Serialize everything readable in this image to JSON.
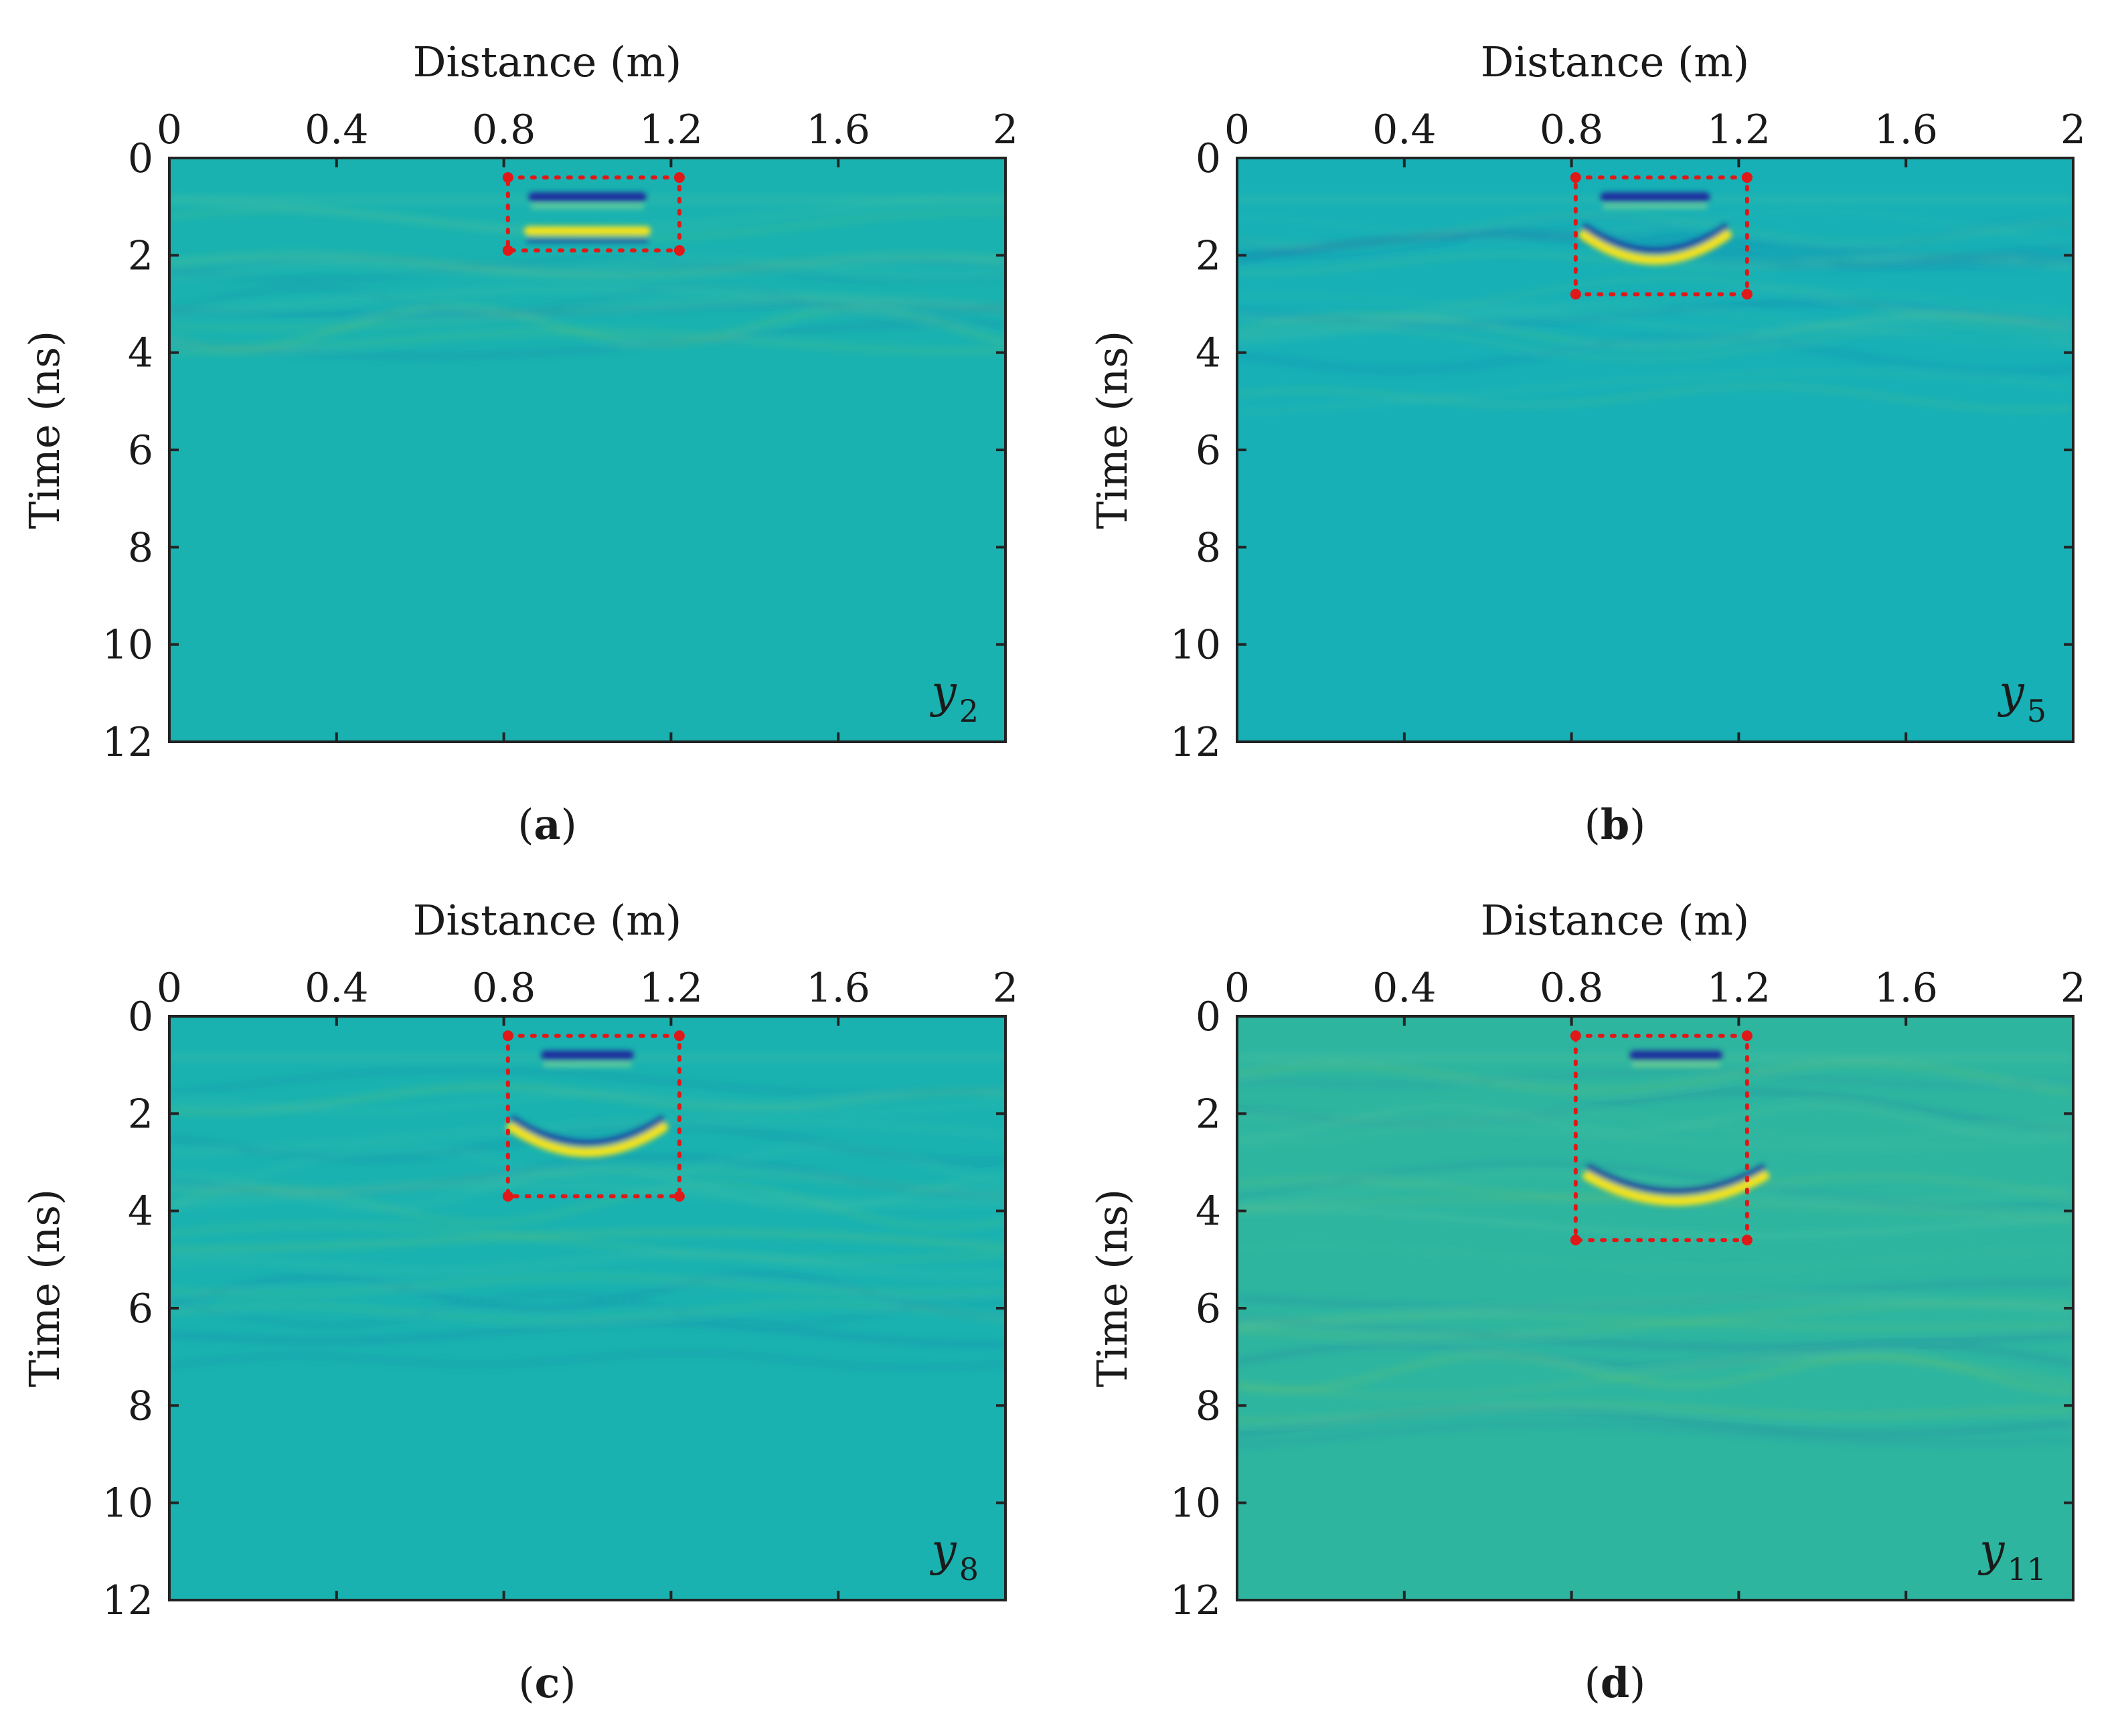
{
  "colors": {
    "background": "#19b2b0",
    "background_b": "#16b0b6",
    "background_d": "#2db5a0",
    "reflection_blue": "#1c2f9e",
    "reflection_yellow": "#f4e21a",
    "reflection_light": "#8fd88c",
    "box": "#e01818",
    "axis": "#222222"
  },
  "chart_data": [
    {
      "type": "heatmap",
      "panel": "a",
      "panel_label": "a",
      "variable": "y",
      "variable_sub": "2",
      "xlabel": "Distance (m)",
      "ylabel": "Time (ns)",
      "xlim": [
        0,
        2
      ],
      "ylim": [
        0,
        12
      ],
      "xticks": [
        0,
        0.4,
        0.8,
        1.2,
        1.6,
        2
      ],
      "xtick_labels": [
        "0",
        "0.4",
        "0.8",
        "1.2",
        "1.6",
        "2"
      ],
      "yticks": [
        0,
        2,
        4,
        6,
        8,
        10,
        12
      ],
      "ytick_labels": [
        "0",
        "2",
        "4",
        "6",
        "8",
        "10",
        "12"
      ],
      "highlight_box": {
        "x": [
          0.81,
          1.22
        ],
        "t": [
          0.4,
          1.9
        ]
      },
      "reflections": [
        {
          "x_center": 1.0,
          "x_half_width": 0.13,
          "t": 0.8,
          "color": "blue"
        },
        {
          "x_center": 1.0,
          "x_half_width": 0.14,
          "t": 1.5,
          "color": "yellow"
        }
      ]
    },
    {
      "type": "heatmap",
      "panel": "b",
      "panel_label": "b",
      "variable": "y",
      "variable_sub": "5",
      "xlabel": "Distance (m)",
      "ylabel": "Time (ns)",
      "xlim": [
        0,
        2
      ],
      "ylim": [
        0,
        12
      ],
      "xticks": [
        0,
        0.4,
        0.8,
        1.2,
        1.6,
        2
      ],
      "xtick_labels": [
        "0",
        "0.4",
        "0.8",
        "1.2",
        "1.6",
        "2"
      ],
      "yticks": [
        0,
        2,
        4,
        6,
        8,
        10,
        12
      ],
      "ytick_labels": [
        "0",
        "2",
        "4",
        "6",
        "8",
        "10",
        "12"
      ],
      "highlight_box": {
        "x": [
          0.81,
          1.22
        ],
        "t": [
          0.4,
          2.8
        ]
      },
      "reflections": [
        {
          "x_center": 1.0,
          "x_half_width": 0.12,
          "t": 0.8,
          "color": "blue"
        },
        {
          "x_center": 1.0,
          "x_half_width": 0.14,
          "t": 2.2,
          "color": "yellow",
          "curved": true
        }
      ]
    },
    {
      "type": "heatmap",
      "panel": "c",
      "panel_label": "c",
      "variable": "y",
      "variable_sub": "8",
      "xlabel": "Distance (m)",
      "ylabel": "Time (ns)",
      "xlim": [
        0,
        2
      ],
      "ylim": [
        0,
        12
      ],
      "xticks": [
        0,
        0.4,
        0.8,
        1.2,
        1.6,
        2
      ],
      "xtick_labels": [
        "0",
        "0.4",
        "0.8",
        "1.2",
        "1.6",
        "2"
      ],
      "yticks": [
        0,
        2,
        4,
        6,
        8,
        10,
        12
      ],
      "ytick_labels": [
        "0",
        "2",
        "4",
        "6",
        "8",
        "10",
        "12"
      ],
      "highlight_box": {
        "x": [
          0.81,
          1.22
        ],
        "t": [
          0.4,
          3.7
        ]
      },
      "reflections": [
        {
          "x_center": 1.0,
          "x_half_width": 0.1,
          "t": 0.8,
          "color": "blue"
        },
        {
          "x_center": 1.0,
          "x_half_width": 0.15,
          "t": 2.9,
          "color": "yellow",
          "curved": true
        }
      ]
    },
    {
      "type": "heatmap",
      "panel": "d",
      "panel_label": "d",
      "variable": "y",
      "variable_sub": "11",
      "xlabel": "Distance (m)",
      "ylabel": "Time (ns)",
      "xlim": [
        0,
        2
      ],
      "ylim": [
        0,
        12
      ],
      "xticks": [
        0,
        0.4,
        0.8,
        1.2,
        1.6,
        2
      ],
      "xtick_labels": [
        "0",
        "0.4",
        "0.8",
        "1.2",
        "1.6",
        "2"
      ],
      "yticks": [
        0,
        2,
        4,
        6,
        8,
        10,
        12
      ],
      "ytick_labels": [
        "0",
        "2",
        "4",
        "6",
        "8",
        "10",
        "12"
      ],
      "highlight_box": {
        "x": [
          0.81,
          1.22
        ],
        "t": [
          0.4,
          4.6
        ]
      },
      "reflections": [
        {
          "x_center": 1.05,
          "x_half_width": 0.1,
          "t": 0.8,
          "color": "blue"
        },
        {
          "x_center": 1.05,
          "x_half_width": 0.18,
          "t": 3.9,
          "color": "yellow",
          "curved": true
        }
      ]
    }
  ]
}
